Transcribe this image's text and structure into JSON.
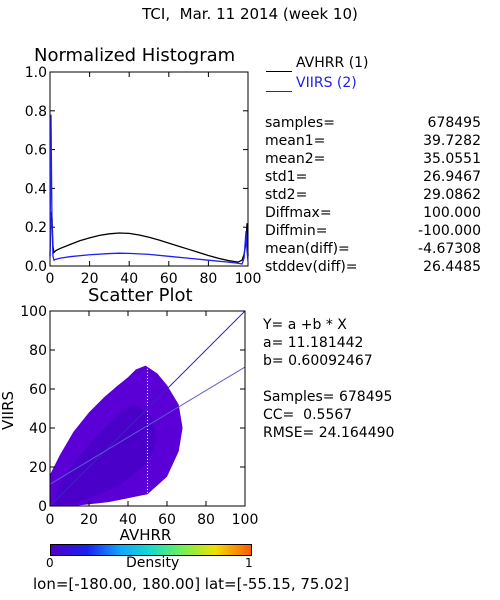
{
  "page_title": "TCI,  Mar. 11 2014 (week 10)",
  "histogram_title": "Normalized Histogram",
  "scatter_title": "Scatter Plot",
  "legend": [
    {
      "label": "AVHRR (1)",
      "color": "#000000"
    },
    {
      "label": "VIIRS (2)",
      "color": "#2020ee"
    }
  ],
  "stats": [
    {
      "key": "samples=",
      "value": "678495"
    },
    {
      "key": "mean1=",
      "value": "39.7282"
    },
    {
      "key": "mean2=",
      "value": "35.0551"
    },
    {
      "key": "std1=",
      "value": "26.9467"
    },
    {
      "key": "std2=",
      "value": "29.0862"
    },
    {
      "key": "Diffmax=",
      "value": "100.000"
    },
    {
      "key": "Diffmin=",
      "value": "-100.000"
    },
    {
      "key": "mean(diff)=",
      "value": "-4.67308"
    },
    {
      "key": "stddev(diff)=",
      "value": "26.4485"
    }
  ],
  "regression": {
    "equation": "Y= a +b * X",
    "a": "a= 11.181442",
    "b": "b= 0.60092467",
    "samples": "Samples= 678495",
    "cc": "CC=  0.5567",
    "rmse": "RMSE= 24.164490"
  },
  "colorbar": {
    "min_label": "0",
    "label": "Density",
    "max_label": "1"
  },
  "footer": "lon=[-180.00, 180.00] lat=[-55.15, 75.02]",
  "chart_data": [
    {
      "type": "line",
      "title": "Normalized Histogram",
      "xlabel": "",
      "ylabel": "",
      "xlim": [
        0,
        100
      ],
      "ylim": [
        0,
        1.0
      ],
      "xticks": [
        "0",
        "20",
        "40",
        "60",
        "80",
        "100"
      ],
      "yticks": [
        "0.0",
        "0.2",
        "0.4",
        "0.6",
        "0.8",
        "1.0"
      ],
      "legend_position": "right",
      "series": [
        {
          "name": "AVHRR (1)",
          "color": "#000000",
          "x": [
            0,
            0.5,
            1,
            1.5,
            2,
            3,
            5,
            10,
            15,
            20,
            25,
            30,
            35,
            40,
            45,
            50,
            55,
            60,
            65,
            70,
            75,
            80,
            85,
            90,
            95,
            97,
            98,
            99,
            99.5,
            100
          ],
          "y": [
            0.05,
            0.28,
            0.25,
            0.1,
            0.07,
            0.08,
            0.09,
            0.11,
            0.13,
            0.145,
            0.158,
            0.166,
            0.17,
            0.168,
            0.16,
            0.148,
            0.134,
            0.118,
            0.102,
            0.086,
            0.07,
            0.054,
            0.04,
            0.028,
            0.02,
            0.03,
            0.06,
            0.12,
            0.22,
            0.05
          ]
        },
        {
          "name": "VIIRS (2)",
          "color": "#2020ee",
          "x": [
            0,
            0.5,
            1,
            1.5,
            2,
            3,
            5,
            10,
            20,
            30,
            35,
            40,
            50,
            60,
            70,
            80,
            90,
            95,
            97,
            98,
            99,
            99.5,
            100
          ],
          "y": [
            0.05,
            0.78,
            0.22,
            0.05,
            0.03,
            0.035,
            0.04,
            0.048,
            0.058,
            0.064,
            0.066,
            0.065,
            0.06,
            0.05,
            0.04,
            0.03,
            0.02,
            0.014,
            0.01,
            0.04,
            0.18,
            0.08,
            0.02
          ]
        }
      ]
    },
    {
      "type": "scatter",
      "title": "Scatter Plot",
      "xlabel": "AVHRR",
      "ylabel": "VIIRS",
      "xlim": [
        0,
        100
      ],
      "ylim": [
        0,
        100
      ],
      "xticks": [
        "0",
        "20",
        "40",
        "60",
        "80",
        "100"
      ],
      "yticks": [
        "0",
        "20",
        "40",
        "60",
        "80",
        "100"
      ],
      "fit_line": {
        "intercept": 11.181442,
        "slope": 0.60092467
      },
      "identity_line": true,
      "point_color": "#5a00d6",
      "samples": 678495
    }
  ]
}
